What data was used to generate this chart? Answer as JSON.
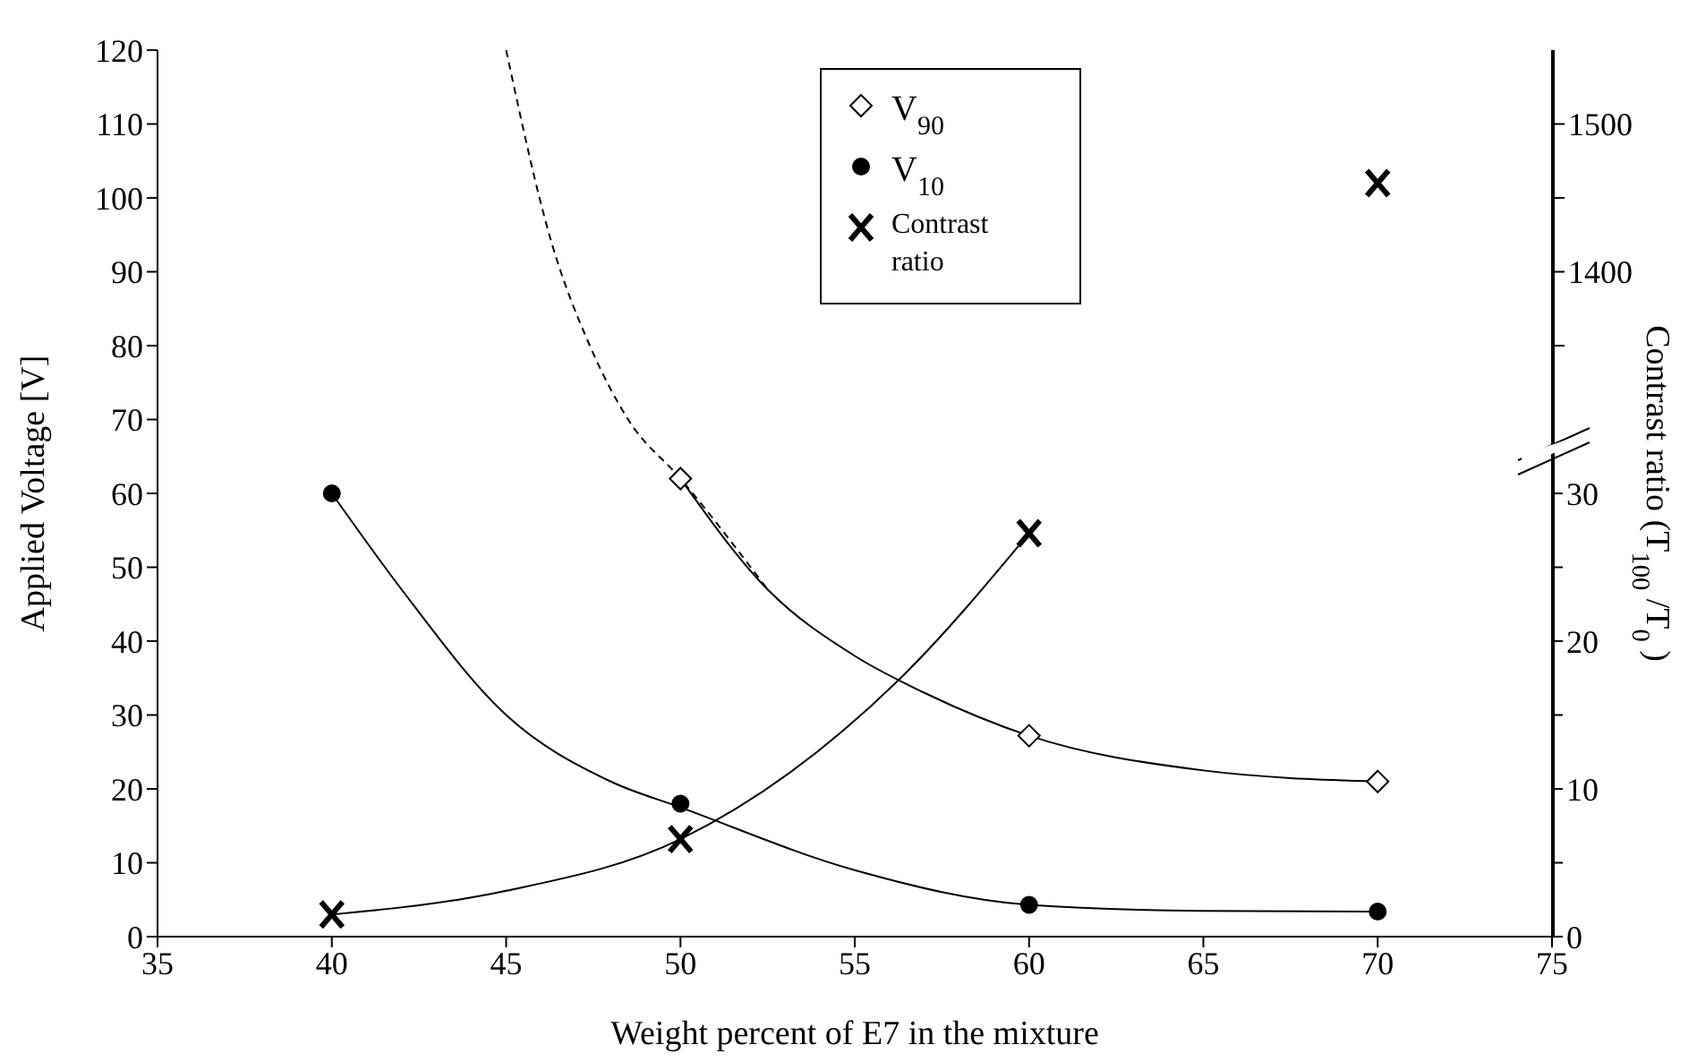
{
  "chart_data": {
    "type": "scatter",
    "xlabel": "Weight percent of E7 in the mixture",
    "ylabel": "Applied Voltage [V]",
    "y2label": "Contrast ratio (T$_{100}$ /T$_{0}$ )",
    "xlim": [
      35,
      75
    ],
    "xticks": [
      35,
      40,
      45,
      50,
      55,
      60,
      65,
      70,
      75
    ],
    "ylim": [
      0,
      120
    ],
    "yticks": [
      0,
      10,
      20,
      30,
      40,
      50,
      60,
      70,
      80,
      90,
      100,
      110,
      120
    ],
    "y2lim": [
      0,
      60
    ],
    "y2ticks": [
      0,
      {
        "value": 5,
        "label": null
      },
      10,
      {
        "value": 15,
        "label": null
      },
      20,
      {
        "value": 25,
        "label": null
      },
      30
    ],
    "y3lim": [
      950,
      1550
    ],
    "y3ticks": [
      {
        "value": 1350,
        "label": null
      },
      1400,
      {
        "value": 1450,
        "label": null
      },
      1500
    ],
    "grid": false,
    "legend": "top",
    "series": [
      {
        "name": "V$_{90}$",
        "type": "scatter",
        "marker": "diamond",
        "color": "#000000",
        "x": [
          50,
          60,
          70
        ],
        "values": [
          62,
          27.2,
          21
        ]
      },
      {
        "name": "V$_{10}$",
        "type": "scatter",
        "marker": "circle",
        "color": "#000000",
        "x": [
          40,
          50,
          60,
          70
        ],
        "values": [
          60,
          18,
          4.3,
          3.4
        ]
      },
      {
        "name": "Contrast ratio",
        "type": "scatter",
        "marker": "cross",
        "axis": "y2",
        "color": "#000000",
        "x": [
          40,
          50,
          60
        ],
        "values": [
          1.5,
          6.6,
          27.3
        ]
      },
      {
        "type": "scatter",
        "marker": "cross",
        "axis": "y3",
        "color": "#000000",
        "x": [
          70
        ],
        "values": [
          1460
        ]
      },
      {
        "type": "line",
        "marker": "none",
        "line_style": "dashed",
        "color": "#000000",
        "x": [
          45,
          46.3,
          47.4,
          48.5,
          50,
          52.5
        ],
        "values": [
          120,
          94,
          80,
          70,
          62,
          47
        ]
      },
      {
        "type": "line",
        "marker": "none",
        "line_style": "solid",
        "color": "#000000",
        "x": [
          50,
          52.5,
          55,
          57,
          60,
          65,
          70
        ],
        "values": [
          62,
          47,
          38,
          33,
          27.2,
          22.5,
          21
        ]
      },
      {
        "type": "line",
        "marker": "none",
        "line_style": "solid",
        "color": "#000000",
        "x": [
          40,
          42,
          45,
          48,
          50,
          55,
          60,
          65,
          70
        ],
        "values": [
          60,
          47,
          30,
          21,
          17.5,
          9,
          4.3,
          3.5,
          3.4
        ]
      },
      {
        "type": "line",
        "marker": "none",
        "line_style": "solid",
        "axis": "y2",
        "color": "#000000",
        "x": [
          40,
          45,
          50,
          56.4,
          60
        ],
        "values": [
          1.5,
          3.1,
          6.6,
          17.7,
          27.3
        ]
      }
    ]
  }
}
